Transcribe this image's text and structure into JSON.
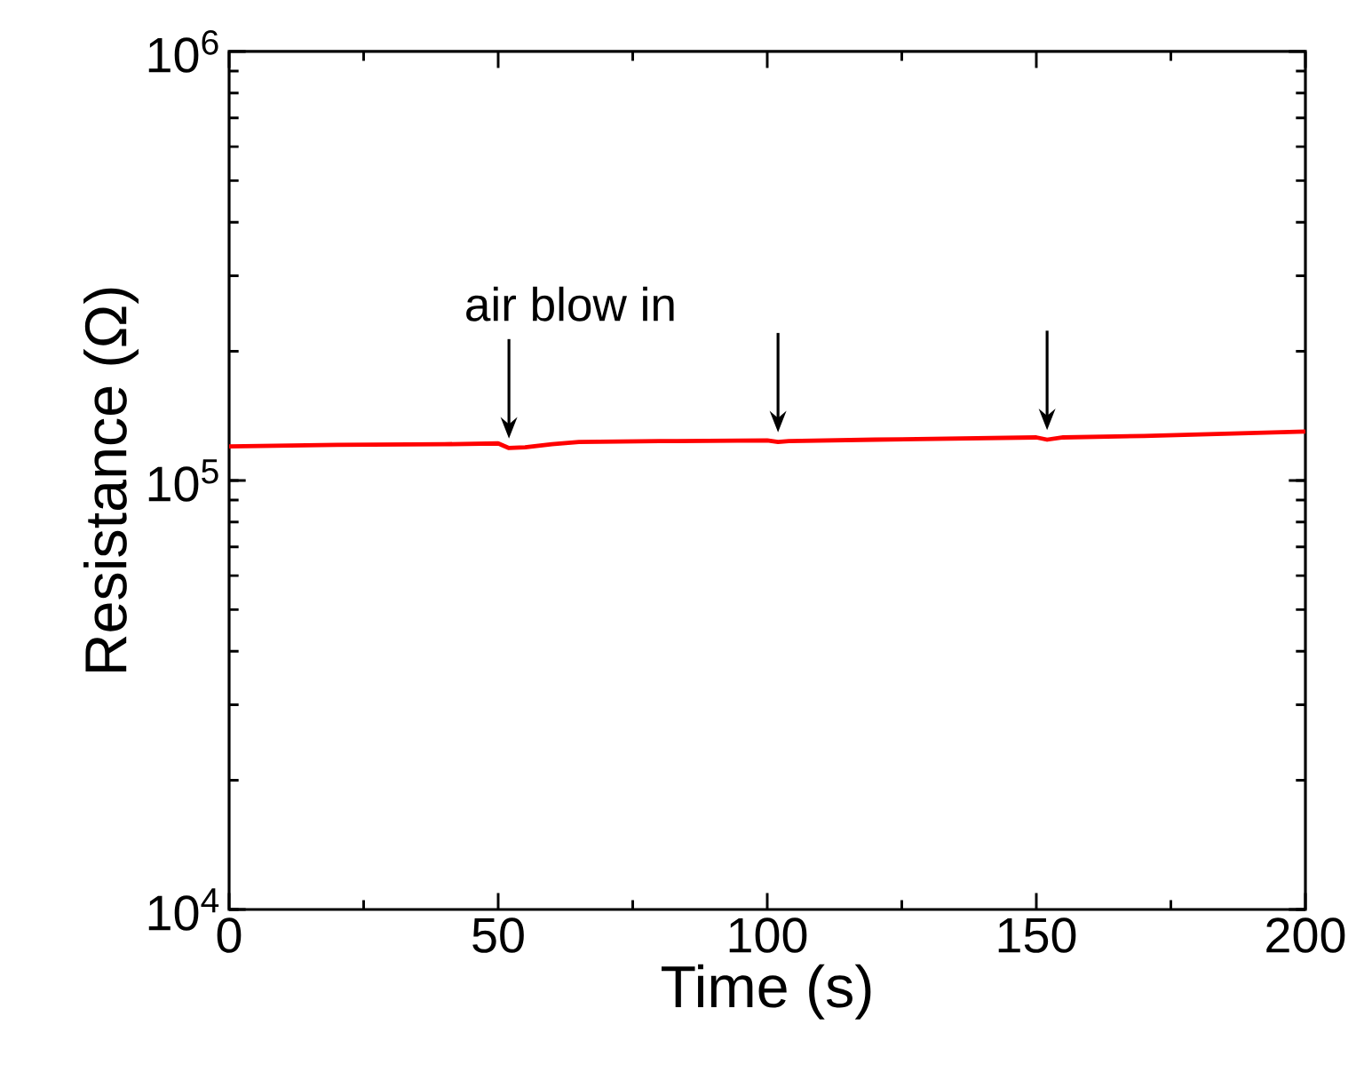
{
  "chart_data": {
    "type": "line",
    "xlabel": "Time (s)",
    "ylabel": "Resistance (Ω)",
    "log": "y",
    "xlim": [
      0,
      200
    ],
    "xticks": [
      0,
      50,
      100,
      150,
      200
    ],
    "ylim": [
      10000,
      1000000
    ],
    "yticks": [
      {
        "value": 10000,
        "label": "10$^{4}$"
      },
      {
        "value": 100000,
        "label": "10$^{5}$"
      },
      {
        "value": 1000000,
        "label": "10$^{6}$"
      }
    ],
    "grid": false,
    "marker": "none",
    "line_style": "solid",
    "series": [
      {
        "color": "#ff0000",
        "x": [
          0,
          20,
          40,
          50,
          52,
          55,
          60,
          65,
          80,
          100,
          102,
          104,
          120,
          150,
          152,
          155,
          170,
          185,
          200
        ],
        "values": [
          120000,
          121000,
          121500,
          122000,
          119000,
          119500,
          121500,
          123000,
          123500,
          124000,
          123000,
          123500,
          124500,
          126000,
          124500,
          126000,
          127000,
          128500,
          130000
        ]
      }
    ],
    "annotations": [
      {
        "text": "air blow in",
        "x": 52,
        "y": 119000
      }
    ]
  }
}
